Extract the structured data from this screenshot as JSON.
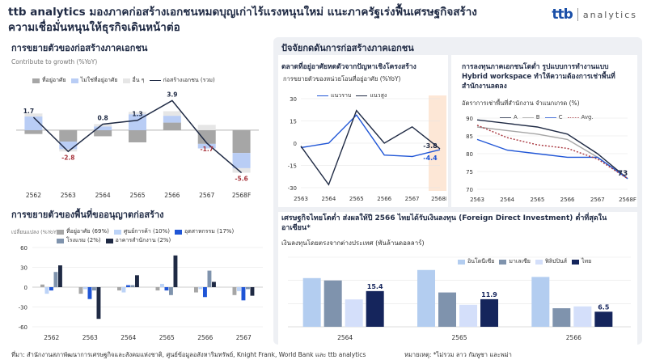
{
  "header": {
    "title": "ttb analytics มองภาคก่อสร้างเอกชนหมดบุญเก่าไร้แรงหนุนใหม่ แนะภาครัฐเร่งฟื้นเศรษฐกิจสร้างความเชื่อมั่นหนุนให้ธุรกิจเดินหน้าต่อ",
    "logo_mark": "ttb",
    "logo_word": "analytics"
  },
  "left": {
    "section1_title": "การขยายตัวของก่อสร้างภาคเอกชน",
    "section2_title": "การขยายตัวของพื้นที่ขออนุญาตก่อสร้าง"
  },
  "panel": {
    "title": "ปัจจัยกดดันการก่อสร้างภาคเอกชน"
  },
  "footnotes": {
    "source": "ที่มา: สำนักงานสภาพัฒนาการเศรษฐกิจและสังคมแห่งชาติ, ศูนย์ข้อมูลอสังหาริมทรัพย์, Knight Frank, World Bank และ ttb analytics",
    "note": "หมายเหตุ: *ไม่รวม ลาว กัมพูชา และพม่า"
  },
  "chart_data": [
    {
      "id": "private_construction",
      "type": "bar",
      "subtitle": "Contribute to growth (%YoY)",
      "categories": [
        "2562",
        "2563",
        "2564",
        "2565",
        "2566",
        "2567",
        "2568F"
      ],
      "stacked": true,
      "series": [
        {
          "name": "ที่อยู่อาศัย",
          "color": "#a6a6a6",
          "values": [
            -0.5,
            -1.5,
            -0.8,
            -1.6,
            1.0,
            -1.8,
            -3.0
          ]
        },
        {
          "name": "ไม่ใช่ที่อยู่อาศัย",
          "color": "#b9cdf5",
          "values": [
            1.8,
            -1.0,
            0.5,
            2.1,
            0.9,
            -0.6,
            -2.0
          ]
        },
        {
          "name": "อื่น ๆ",
          "color": "#e6e6e6",
          "values": [
            0.4,
            -0.3,
            0.3,
            0.3,
            0.6,
            0.7,
            -0.6
          ]
        }
      ],
      "line": {
        "name": "ก่อสร้างเอกชน (รวม)",
        "color": "#1f2a44",
        "values": [
          1.7,
          -2.8,
          0.8,
          1.3,
          3.9,
          -1.7,
          -5.6
        ]
      },
      "ylim": [
        -6.5,
        5
      ],
      "grid": false,
      "legend": "top"
    },
    {
      "id": "permit_area",
      "type": "bar",
      "ylabel": "เปลี่ยนแปลง (%YoY)",
      "categories": [
        "2562",
        "2563",
        "2564",
        "2565",
        "2566",
        "2567"
      ],
      "series": [
        {
          "name": "ที่อยู่อาศัย (69%)",
          "color": "#a6a6a6",
          "values": [
            4,
            -10,
            -5,
            -5,
            -8,
            -12
          ]
        },
        {
          "name": "ศูนย์การค้า (10%)",
          "color": "#bcd3f7",
          "values": [
            -10,
            -3,
            -8,
            5,
            -3,
            -6
          ]
        },
        {
          "name": "อุตสาหกรรม (17%)",
          "color": "#1f55d6",
          "values": [
            -5,
            -18,
            3,
            -5,
            -15,
            -20
          ]
        },
        {
          "name": "โรงแรม (2%)",
          "color": "#7f93ad",
          "values": [
            23,
            -5,
            3,
            -12,
            25,
            -3
          ]
        },
        {
          "name": "อาคารสำนักงาน (2%)",
          "color": "#1f2a44",
          "values": [
            33,
            -48,
            18,
            48,
            8,
            -13
          ]
        }
      ],
      "ylim": [
        -60,
        60
      ],
      "yticks": [
        -60,
        -30,
        0,
        30,
        60
      ],
      "grid": true,
      "legend": "top"
    },
    {
      "id": "housing_supply",
      "type": "line",
      "title": "ตลาดที่อยู่อาศัยหดตัวจากปัญหาเชิงโครงสร้าง",
      "subtitle": "การขยายตัวของหน่วยโอนที่อยู่อาศัย (%YoY)",
      "categories": [
        "2563",
        "2564",
        "2565",
        "2566",
        "2567",
        "2568F"
      ],
      "series": [
        {
          "name": "แนวราบ",
          "color": "#1f55d6",
          "values": [
            -3,
            0,
            19,
            -8,
            -9,
            -4.4
          ]
        },
        {
          "name": "แนวสูง",
          "color": "#1f2a44",
          "values": [
            -2,
            -28,
            22,
            0,
            11,
            -3.8
          ]
        }
      ],
      "labels": {
        "แนวราบ_last": "-4.4",
        "แนวสูง_last": "-3.8"
      },
      "highlight_category": "2568F",
      "ylim": [
        -30,
        30
      ],
      "yticks": [
        -30,
        -15,
        0,
        15,
        30
      ],
      "grid": true,
      "legend": "top"
    },
    {
      "id": "office_occupancy",
      "type": "line",
      "title": "การลงทุนภาคเอกชนโตต่ำ รูปแบบการทำงานแบบ Hybrid workspace ทำให้ความต้องการเช่าพื้นที่สำนักงานลดลง",
      "subtitle": "อัตราการเช่าพื้นที่สำนักงาน จำแนกเกรด (%)",
      "categories": [
        "2563",
        "2564",
        "2565",
        "2566",
        "2567",
        "2568F"
      ],
      "series": [
        {
          "name": "A",
          "color": "#1f2a44",
          "dash": false,
          "values": [
            89.5,
            88.5,
            87.5,
            85.5,
            80,
            73
          ]
        },
        {
          "name": "B",
          "color": "#a6a6a6",
          "dash": false,
          "values": [
            87.5,
            86.5,
            85.5,
            84,
            79,
            73
          ]
        },
        {
          "name": "C",
          "color": "#1f55d6",
          "dash": false,
          "values": [
            84,
            81,
            80,
            79,
            79,
            73
          ]
        },
        {
          "name": "Avg.",
          "color": "#a8353d",
          "dash": true,
          "values": [
            88,
            84.5,
            82.5,
            81.5,
            78.5,
            73
          ]
        }
      ],
      "last_label": "73",
      "ylim": [
        70,
        90
      ],
      "yticks": [
        70,
        75,
        80,
        85,
        90
      ],
      "grid": true,
      "legend": "top"
    },
    {
      "id": "fdi",
      "type": "bar",
      "title": "เศรษฐกิจไทยโตต่ำ ส่งผลให้ปี 2566 ไทยได้รับเงินลงทุน (Foreign Direct Investment) ต่ำที่สุดในอาเซียน*",
      "subtitle": "เงินลงทุนโดยตรงจากต่างประเทศ (พันล้านดอลลาร์)",
      "categories": [
        "2564",
        "2565",
        "2566"
      ],
      "series": [
        {
          "name": "อินโดนีเซีย",
          "color": "#b3cdf0",
          "values": [
            21,
            24.5,
            21.5
          ]
        },
        {
          "name": "มาเลเซีย",
          "color": "#7f93ad",
          "values": [
            20,
            14.8,
            8
          ]
        },
        {
          "name": "ฟิลิปปินส์",
          "color": "#d4dffa",
          "values": [
            11.8,
            9.5,
            8.8
          ]
        },
        {
          "name": "ไทย",
          "color": "#15255c",
          "values": [
            15.4,
            11.9,
            6.5
          ]
        }
      ],
      "data_labels": {
        "ไทย": [
          "15.4",
          "11.9",
          "6.5"
        ]
      },
      "ylim": [
        0,
        30
      ],
      "grid": true,
      "legend": "top-right"
    }
  ]
}
